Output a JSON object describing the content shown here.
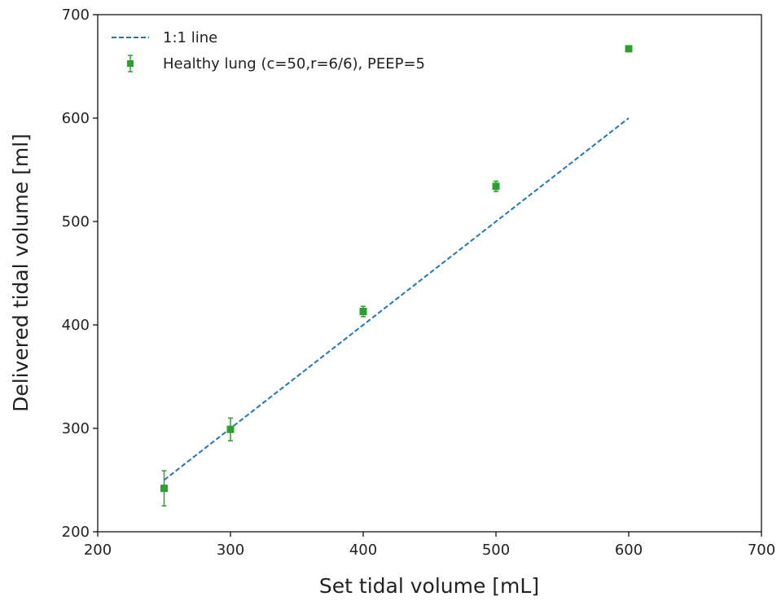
{
  "chart_data": {
    "type": "scatter",
    "xlabel": "Set tidal volume [mL]",
    "ylabel": "Delivered tidal volume [ml]",
    "xlim": [
      200,
      700
    ],
    "ylim": [
      200,
      700
    ],
    "xticks": [
      200,
      300,
      400,
      500,
      600,
      700
    ],
    "yticks": [
      200,
      300,
      400,
      500,
      600,
      700
    ],
    "grid": false,
    "legend_position": "top-left",
    "series": [
      {
        "name": "1:1 line",
        "kind": "line",
        "style": "dashed",
        "color": "#1f77b4",
        "x": [
          250,
          600
        ],
        "y": [
          250,
          600
        ]
      },
      {
        "name": "Healthy lung (c=50,r=6/6), PEEP=5",
        "kind": "errorbar",
        "marker": "square",
        "color": "#2ca02c",
        "x": [
          250,
          300,
          400,
          500,
          600
        ],
        "y": [
          242,
          299,
          413,
          534,
          667
        ],
        "yerr": [
          17,
          11,
          5,
          5,
          1
        ]
      }
    ]
  }
}
